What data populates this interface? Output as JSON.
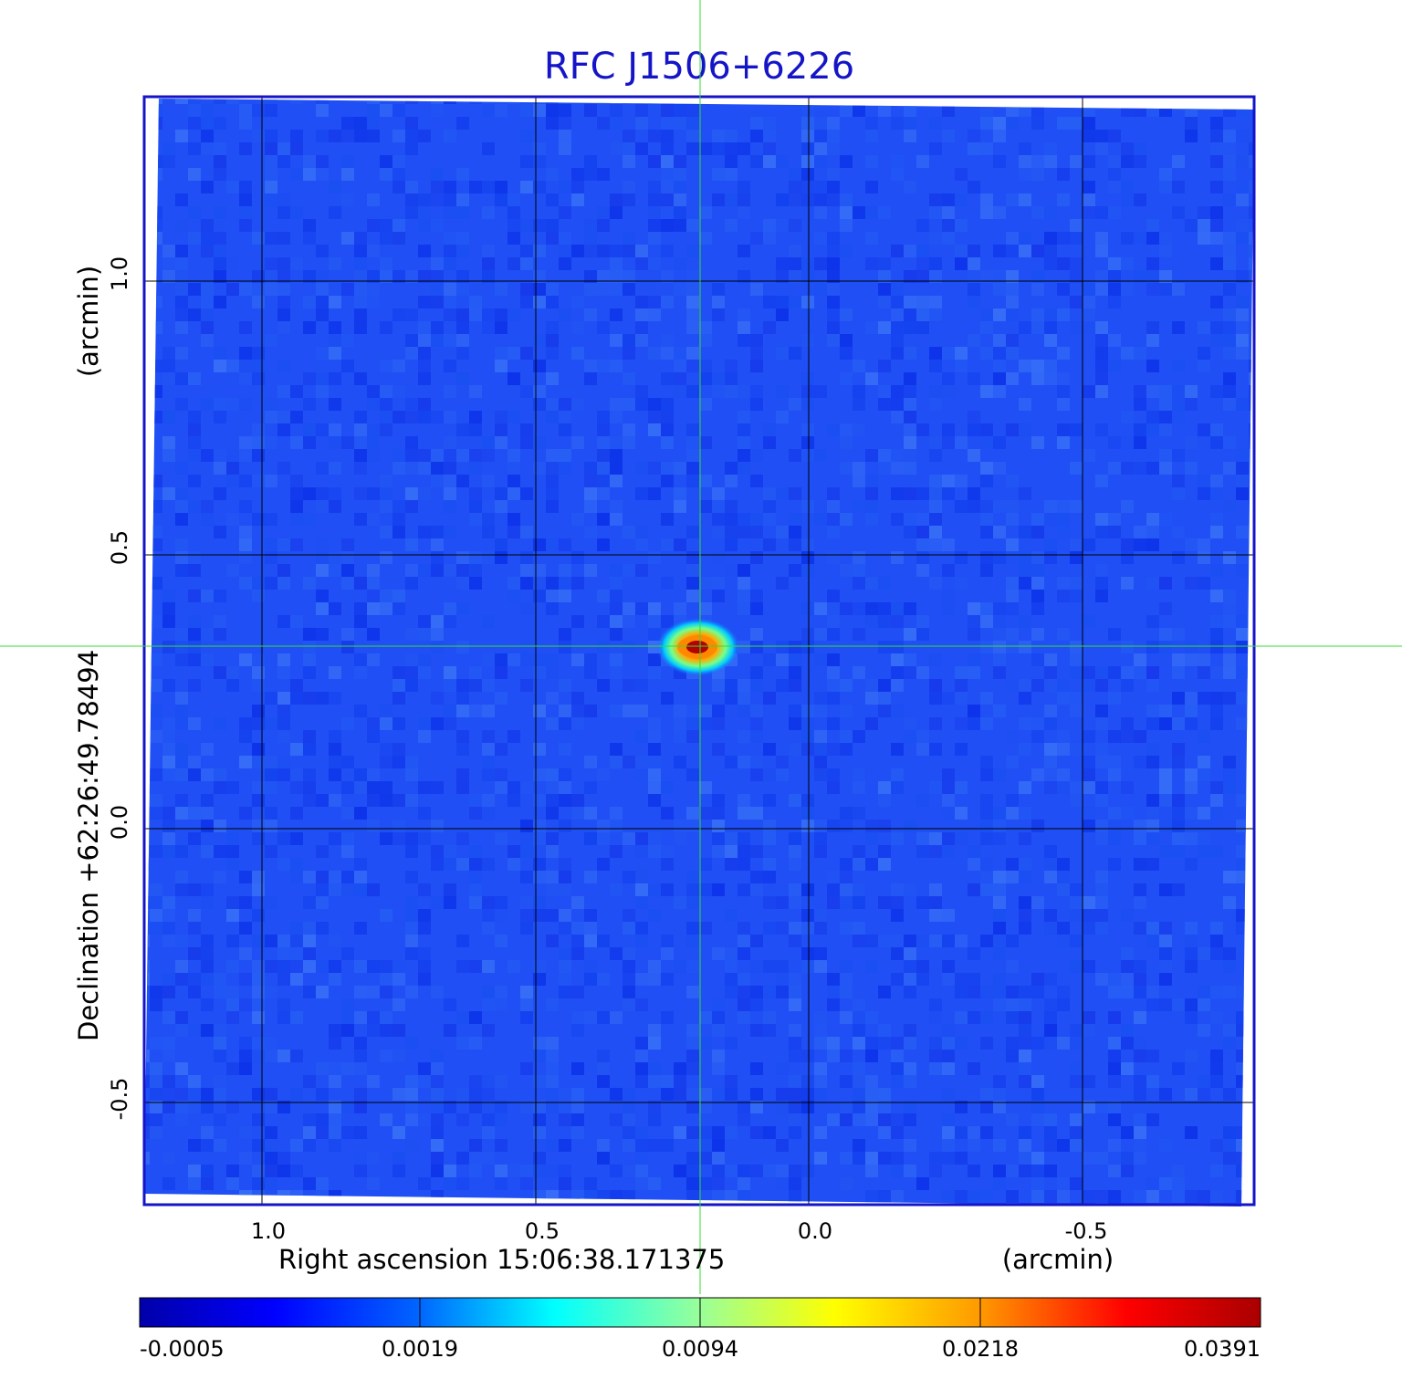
{
  "title": "RFC J1506+6226",
  "x_axis": {
    "label": "Right ascension  15:06:38.171375",
    "unit": "(arcmin)",
    "ticks": [
      "1.0",
      "0.5",
      "0.0",
      "-0.5"
    ]
  },
  "y_axis": {
    "label": "Declination  +62:26:49.78494",
    "unit": "(arcmin)",
    "ticks": [
      "1.0",
      "0.5",
      "0.0",
      "-0.5"
    ]
  },
  "colorbar": {
    "ticks": [
      "-0.0005",
      "0.0019",
      "0.0094",
      "0.0218",
      "0.0391"
    ],
    "colors": [
      "#0000aa",
      "#0000ff",
      "#0099ff",
      "#00ffff",
      "#99ff99",
      "#ffff00",
      "#ff9900",
      "#ff0000",
      "#aa0000"
    ]
  },
  "colors": {
    "frame": "#1414c8",
    "background_map": "#1f4ff5",
    "grid": "#000000",
    "crosshair": "#33dd33",
    "source_core": "#b30000"
  }
}
